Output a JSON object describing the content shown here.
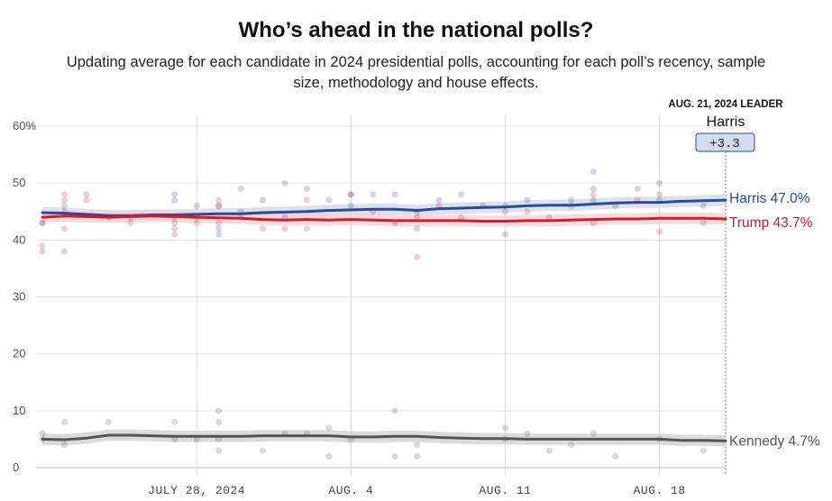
{
  "header": {
    "title": "Who’s ahead in the national polls?",
    "subtitle": "Updating average for each candidate in 2024 presidential polls, accounting for each poll’s recency, sample size, methodology and house effects."
  },
  "leader_box": {
    "date_label": "AUG. 21, 2024 LEADER",
    "name": "Harris",
    "margin": "+3.3"
  },
  "colors": {
    "harris": "#2d4b95",
    "trump": "#c8202e",
    "kennedy": "#555555",
    "grid": "#dddddd",
    "leader_box_fill": "#d3dcf0"
  },
  "chart_data": {
    "type": "line",
    "title": "Who’s ahead in the national polls?",
    "subtitle": "Updating average for each candidate in 2024 presidential polls, accounting for each poll’s recency, sample size, methodology and house effects.",
    "x_start": "2024-07-21",
    "x_end": "2024-08-21",
    "x_ticks": [
      {
        "date": "2024-07-28",
        "label": "JULY 28, 2024"
      },
      {
        "date": "2024-08-04",
        "label": "AUG. 4"
      },
      {
        "date": "2024-08-11",
        "label": "AUG. 11"
      },
      {
        "date": "2024-08-18",
        "label": "AUG. 18"
      }
    ],
    "y_ticks": [
      {
        "value": 0,
        "label": "0"
      },
      {
        "value": 10,
        "label": "10"
      },
      {
        "value": 20,
        "label": "20"
      },
      {
        "value": 30,
        "label": "30"
      },
      {
        "value": 40,
        "label": "40"
      },
      {
        "value": 50,
        "label": "50"
      },
      {
        "value": 60,
        "label": "60%"
      }
    ],
    "ylim": [
      0,
      60
    ],
    "grid": true,
    "series": [
      {
        "name": "Harris",
        "end_label": "Harris 47.0%",
        "color": "#2d4b95",
        "band": 1.0,
        "avg": [
          [
            "2024-07-21",
            44.8
          ],
          [
            "2024-07-22",
            44.7
          ],
          [
            "2024-07-23",
            44.5
          ],
          [
            "2024-07-24",
            44.3
          ],
          [
            "2024-07-25",
            44.3
          ],
          [
            "2024-07-26",
            44.4
          ],
          [
            "2024-07-27",
            44.4
          ],
          [
            "2024-07-28",
            44.5
          ],
          [
            "2024-07-29",
            44.6
          ],
          [
            "2024-07-30",
            44.6
          ],
          [
            "2024-07-31",
            44.8
          ],
          [
            "2024-08-01",
            44.9
          ],
          [
            "2024-08-02",
            45.0
          ],
          [
            "2024-08-03",
            45.2
          ],
          [
            "2024-08-04",
            45.3
          ],
          [
            "2024-08-05",
            45.4
          ],
          [
            "2024-08-06",
            45.4
          ],
          [
            "2024-08-07",
            45.2
          ],
          [
            "2024-08-08",
            45.5
          ],
          [
            "2024-08-09",
            45.6
          ],
          [
            "2024-08-10",
            45.7
          ],
          [
            "2024-08-11",
            45.8
          ],
          [
            "2024-08-12",
            46.0
          ],
          [
            "2024-08-13",
            46.1
          ],
          [
            "2024-08-14",
            46.1
          ],
          [
            "2024-08-15",
            46.3
          ],
          [
            "2024-08-16",
            46.5
          ],
          [
            "2024-08-17",
            46.6
          ],
          [
            "2024-08-18",
            46.6
          ],
          [
            "2024-08-19",
            46.8
          ],
          [
            "2024-08-20",
            46.9
          ],
          [
            "2024-08-21",
            47.0
          ]
        ],
        "polls": [
          [
            "2024-07-21",
            38
          ],
          [
            "2024-07-21",
            43
          ],
          [
            "2024-07-22",
            46
          ],
          [
            "2024-07-22",
            45
          ],
          [
            "2024-07-22",
            38
          ],
          [
            "2024-07-23",
            48
          ],
          [
            "2024-07-24",
            44
          ],
          [
            "2024-07-25",
            44
          ],
          [
            "2024-07-27",
            48
          ],
          [
            "2024-07-27",
            47
          ],
          [
            "2024-07-27",
            43
          ],
          [
            "2024-07-28",
            44
          ],
          [
            "2024-07-28",
            46
          ],
          [
            "2024-07-29",
            42
          ],
          [
            "2024-07-29",
            41
          ],
          [
            "2024-07-29",
            46
          ],
          [
            "2024-07-30",
            49
          ],
          [
            "2024-07-30",
            45
          ],
          [
            "2024-07-31",
            47
          ],
          [
            "2024-08-01",
            50
          ],
          [
            "2024-08-01",
            44
          ],
          [
            "2024-08-02",
            49
          ],
          [
            "2024-08-03",
            47
          ],
          [
            "2024-08-04",
            48
          ],
          [
            "2024-08-04",
            46
          ],
          [
            "2024-08-05",
            48
          ],
          [
            "2024-08-06",
            48
          ],
          [
            "2024-08-07",
            42
          ],
          [
            "2024-08-07",
            45
          ],
          [
            "2024-08-08",
            47
          ],
          [
            "2024-08-09",
            48
          ],
          [
            "2024-08-10",
            46
          ],
          [
            "2024-08-11",
            41
          ],
          [
            "2024-08-11",
            46
          ],
          [
            "2024-08-12",
            47
          ],
          [
            "2024-08-14",
            47
          ],
          [
            "2024-08-15",
            52
          ],
          [
            "2024-08-15",
            49
          ],
          [
            "2024-08-15",
            47
          ],
          [
            "2024-08-16",
            46
          ],
          [
            "2024-08-17",
            49
          ],
          [
            "2024-08-18",
            50
          ],
          [
            "2024-08-18",
            47
          ],
          [
            "2024-08-20",
            46
          ]
        ]
      },
      {
        "name": "Trump",
        "end_label": "Trump 43.7%",
        "color": "#c8202e",
        "band": 1.0,
        "avg": [
          [
            "2024-07-21",
            44.0
          ],
          [
            "2024-07-22",
            44.2
          ],
          [
            "2024-07-23",
            44.1
          ],
          [
            "2024-07-24",
            44.0
          ],
          [
            "2024-07-25",
            44.1
          ],
          [
            "2024-07-26",
            44.2
          ],
          [
            "2024-07-27",
            44.1
          ],
          [
            "2024-07-28",
            44.0
          ],
          [
            "2024-07-29",
            43.9
          ],
          [
            "2024-07-30",
            43.8
          ],
          [
            "2024-07-31",
            43.6
          ],
          [
            "2024-08-01",
            43.5
          ],
          [
            "2024-08-02",
            43.6
          ],
          [
            "2024-08-03",
            43.5
          ],
          [
            "2024-08-04",
            43.6
          ],
          [
            "2024-08-05",
            43.5
          ],
          [
            "2024-08-06",
            43.4
          ],
          [
            "2024-08-07",
            43.4
          ],
          [
            "2024-08-08",
            43.4
          ],
          [
            "2024-08-09",
            43.4
          ],
          [
            "2024-08-10",
            43.3
          ],
          [
            "2024-08-11",
            43.3
          ],
          [
            "2024-08-12",
            43.4
          ],
          [
            "2024-08-13",
            43.4
          ],
          [
            "2024-08-14",
            43.5
          ],
          [
            "2024-08-15",
            43.6
          ],
          [
            "2024-08-16",
            43.7
          ],
          [
            "2024-08-17",
            43.7
          ],
          [
            "2024-08-18",
            43.8
          ],
          [
            "2024-08-19",
            43.8
          ],
          [
            "2024-08-20",
            43.8
          ],
          [
            "2024-08-21",
            43.7
          ]
        ],
        "polls": [
          [
            "2024-07-21",
            39
          ],
          [
            "2024-07-21",
            43
          ],
          [
            "2024-07-22",
            48
          ],
          [
            "2024-07-22",
            47
          ],
          [
            "2024-07-22",
            42
          ],
          [
            "2024-07-23",
            47
          ],
          [
            "2024-07-25",
            43
          ],
          [
            "2024-07-27",
            44
          ],
          [
            "2024-07-27",
            42
          ],
          [
            "2024-07-27",
            41
          ],
          [
            "2024-07-28",
            43
          ],
          [
            "2024-07-29",
            47
          ],
          [
            "2024-07-29",
            46
          ],
          [
            "2024-07-29",
            43
          ],
          [
            "2024-07-30",
            44
          ],
          [
            "2024-07-31",
            42
          ],
          [
            "2024-08-01",
            42
          ],
          [
            "2024-08-02",
            42
          ],
          [
            "2024-08-02",
            47
          ],
          [
            "2024-08-04",
            48
          ],
          [
            "2024-08-05",
            45
          ],
          [
            "2024-08-06",
            43
          ],
          [
            "2024-08-07",
            37
          ],
          [
            "2024-08-07",
            44
          ],
          [
            "2024-08-08",
            46
          ],
          [
            "2024-08-09",
            44
          ],
          [
            "2024-08-11",
            45
          ],
          [
            "2024-08-12",
            45
          ],
          [
            "2024-08-13",
            44
          ],
          [
            "2024-08-14",
            46
          ],
          [
            "2024-08-15",
            43
          ],
          [
            "2024-08-15",
            48
          ],
          [
            "2024-08-17",
            47
          ],
          [
            "2024-08-18",
            41.5
          ],
          [
            "2024-08-18",
            48
          ],
          [
            "2024-08-20",
            43
          ]
        ]
      },
      {
        "name": "Kennedy",
        "end_label": "Kennedy 4.7%",
        "color": "#555555",
        "band": 1.0,
        "avg": [
          [
            "2024-07-21",
            5.0
          ],
          [
            "2024-07-22",
            4.9
          ],
          [
            "2024-07-23",
            5.2
          ],
          [
            "2024-07-24",
            5.7
          ],
          [
            "2024-07-25",
            5.7
          ],
          [
            "2024-07-26",
            5.6
          ],
          [
            "2024-07-27",
            5.5
          ],
          [
            "2024-07-28",
            5.5
          ],
          [
            "2024-07-29",
            5.5
          ],
          [
            "2024-07-30",
            5.5
          ],
          [
            "2024-07-31",
            5.6
          ],
          [
            "2024-08-01",
            5.6
          ],
          [
            "2024-08-02",
            5.6
          ],
          [
            "2024-08-03",
            5.6
          ],
          [
            "2024-08-04",
            5.4
          ],
          [
            "2024-08-05",
            5.4
          ],
          [
            "2024-08-06",
            5.5
          ],
          [
            "2024-08-07",
            5.5
          ],
          [
            "2024-08-08",
            5.3
          ],
          [
            "2024-08-09",
            5.2
          ],
          [
            "2024-08-10",
            5.1
          ],
          [
            "2024-08-11",
            5.1
          ],
          [
            "2024-08-12",
            5.0
          ],
          [
            "2024-08-13",
            5.0
          ],
          [
            "2024-08-14",
            5.0
          ],
          [
            "2024-08-15",
            5.0
          ],
          [
            "2024-08-16",
            5.0
          ],
          [
            "2024-08-17",
            5.0
          ],
          [
            "2024-08-18",
            5.0
          ],
          [
            "2024-08-19",
            4.8
          ],
          [
            "2024-08-20",
            4.8
          ],
          [
            "2024-08-21",
            4.7
          ]
        ],
        "polls": [
          [
            "2024-07-21",
            6
          ],
          [
            "2024-07-21",
            5
          ],
          [
            "2024-07-22",
            4
          ],
          [
            "2024-07-22",
            8
          ],
          [
            "2024-07-24",
            8
          ],
          [
            "2024-07-27",
            8
          ],
          [
            "2024-07-27",
            5
          ],
          [
            "2024-07-28",
            5
          ],
          [
            "2024-07-29",
            10
          ],
          [
            "2024-07-29",
            8
          ],
          [
            "2024-07-29",
            3
          ],
          [
            "2024-07-29",
            5
          ],
          [
            "2024-07-31",
            3
          ],
          [
            "2024-08-01",
            6
          ],
          [
            "2024-08-02",
            6
          ],
          [
            "2024-08-03",
            7
          ],
          [
            "2024-08-03",
            2
          ],
          [
            "2024-08-04",
            5
          ],
          [
            "2024-08-06",
            10
          ],
          [
            "2024-08-06",
            2
          ],
          [
            "2024-08-07",
            4
          ],
          [
            "2024-08-07",
            2
          ],
          [
            "2024-08-11",
            7
          ],
          [
            "2024-08-11",
            5
          ],
          [
            "2024-08-12",
            6
          ],
          [
            "2024-08-13",
            3
          ],
          [
            "2024-08-14",
            4
          ],
          [
            "2024-08-15",
            6
          ],
          [
            "2024-08-16",
            2
          ],
          [
            "2024-08-18",
            5
          ],
          [
            "2024-08-20",
            3
          ]
        ]
      }
    ]
  }
}
